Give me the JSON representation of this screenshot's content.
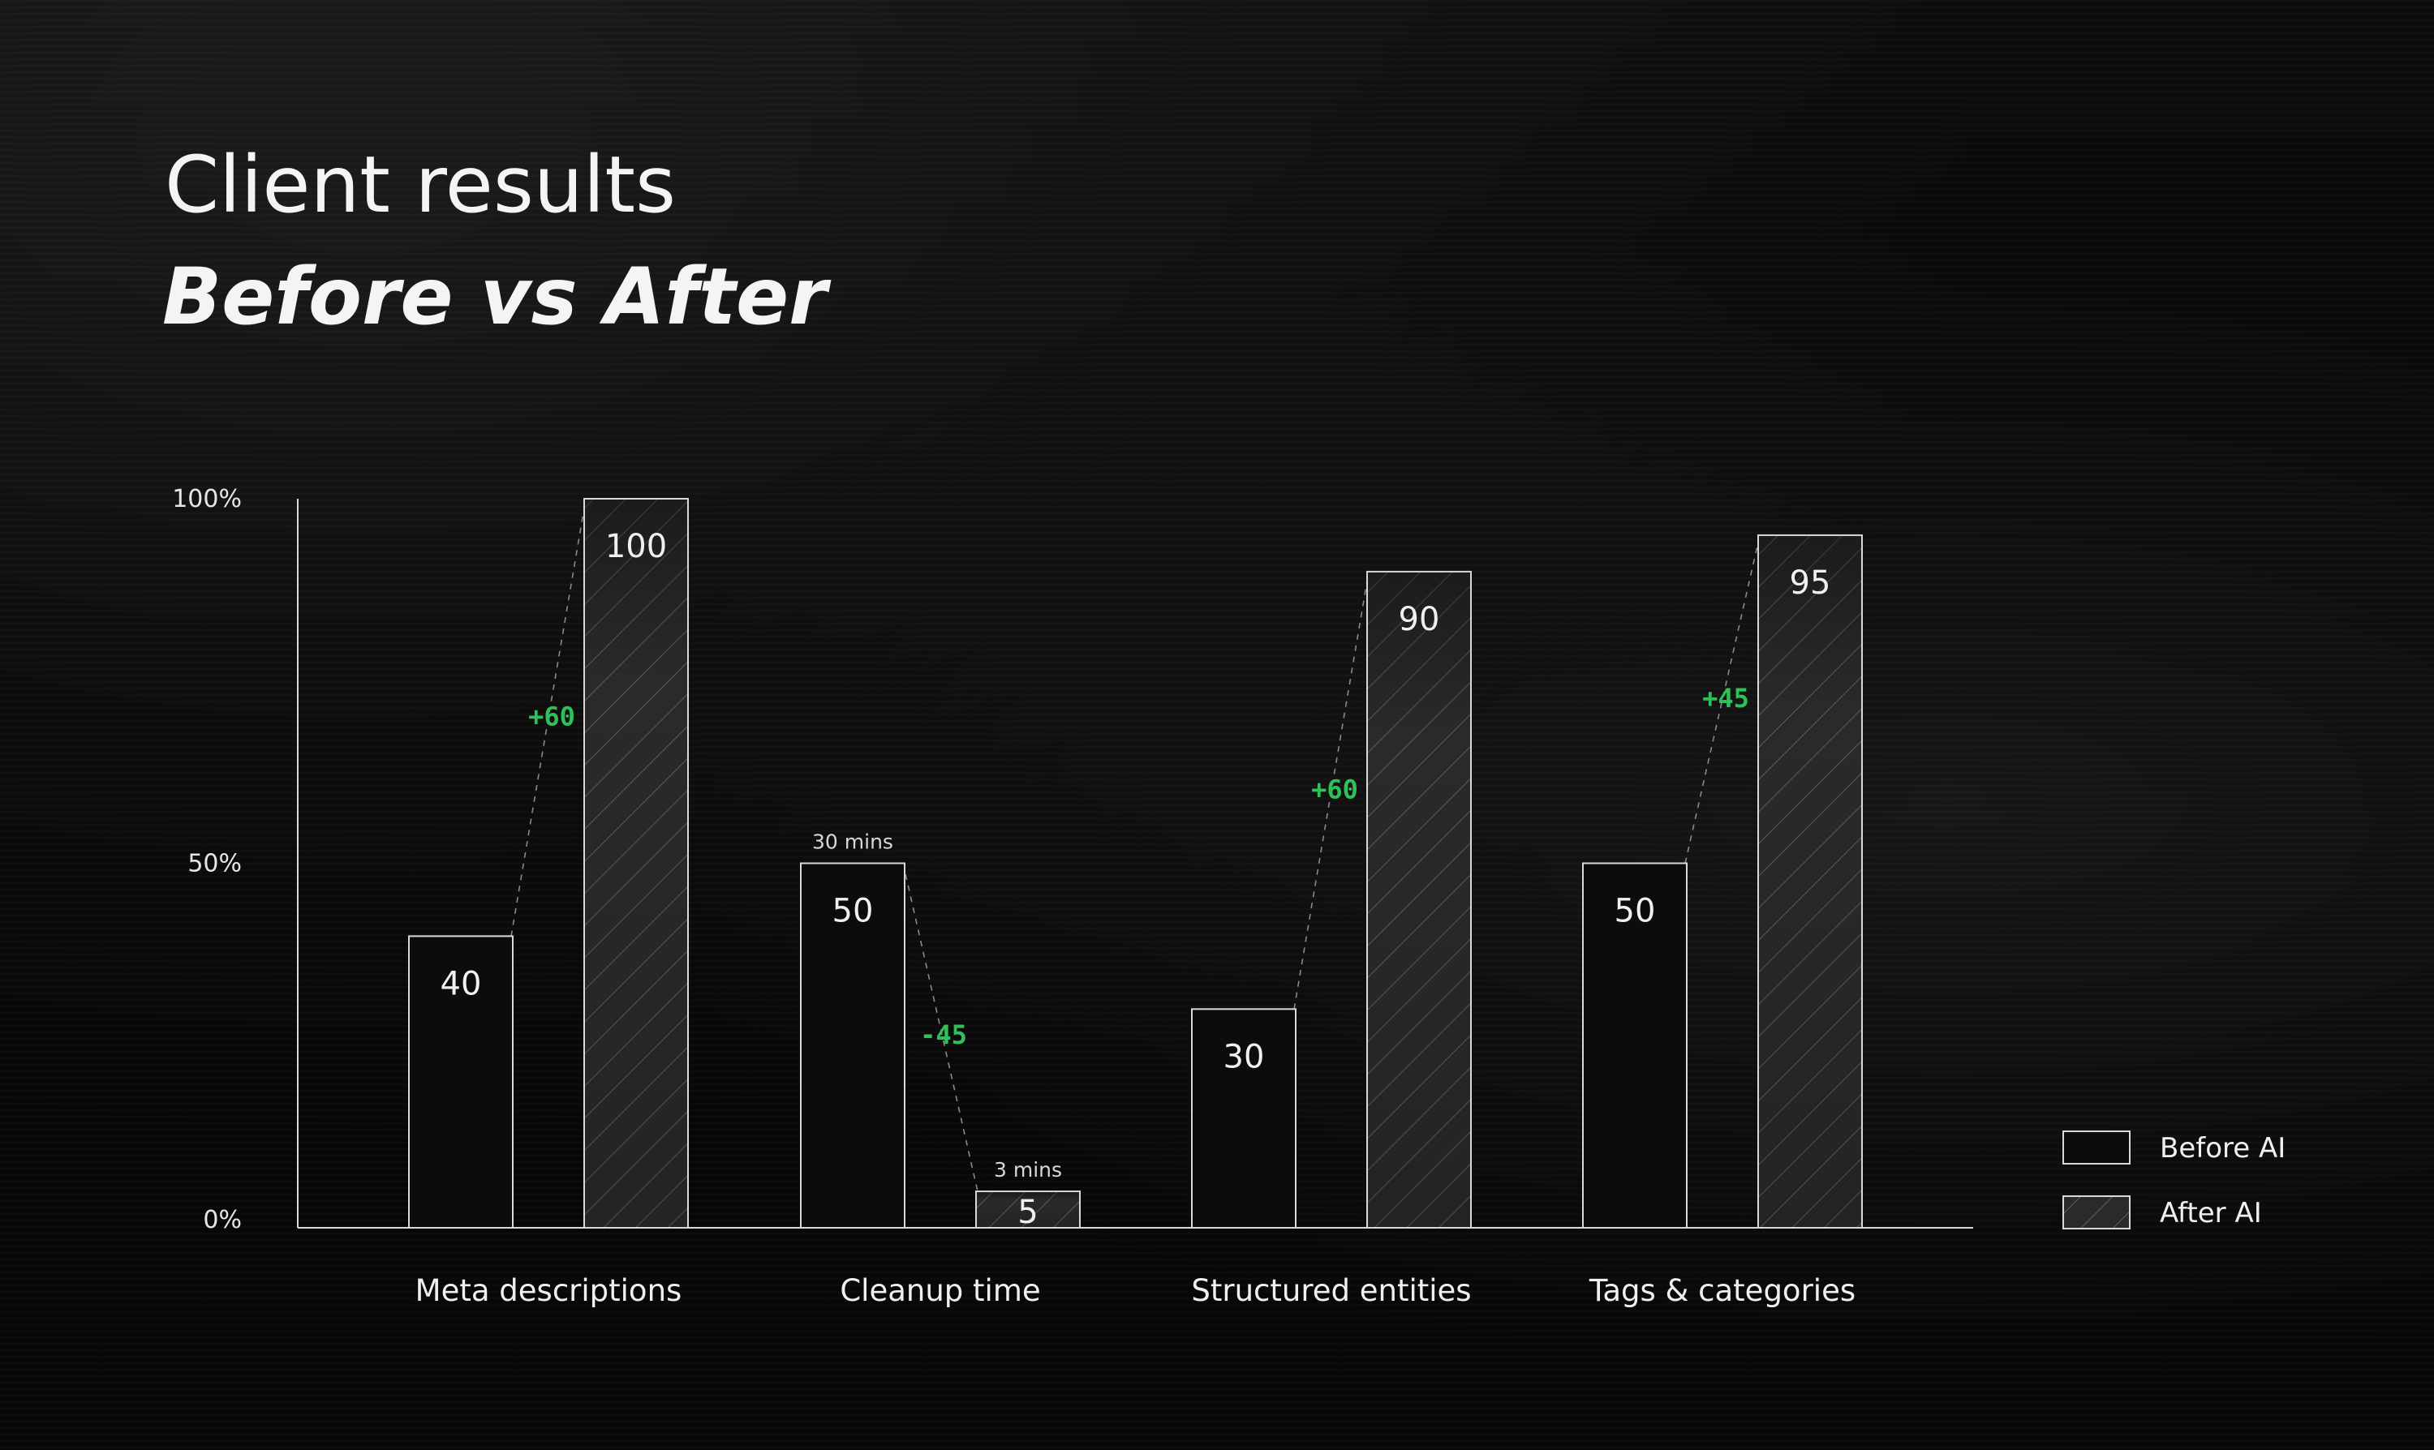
{
  "header": {
    "title": "Client results",
    "subtitle": "Before vs After"
  },
  "colors": {
    "background": "#050505",
    "bar_fill": "#0c0c0d",
    "bar_stroke": "#d9d9d9",
    "hatch": "#7a7a7a",
    "delta_positive": "#2fc05a",
    "connector": "#8a8a8a"
  },
  "chart_data": {
    "type": "bar",
    "title": "Client results",
    "subtitle": "Before vs After",
    "xlabel": "",
    "ylabel": "",
    "ylim": [
      0,
      100
    ],
    "y_ticks": [
      "0%",
      "50%",
      "100%"
    ],
    "y_tick_values": [
      0,
      50,
      100
    ],
    "grid": false,
    "legend_position": "bottom-right",
    "categories": [
      "Meta descriptions",
      "Cleanup time",
      "Structured entities",
      "Tags & categories"
    ],
    "series": [
      {
        "name": "Before AI",
        "style": "solid",
        "values": [
          40,
          50,
          30,
          50
        ]
      },
      {
        "name": "After AI",
        "style": "hatched",
        "values": [
          100,
          5,
          90,
          95
        ]
      }
    ],
    "deltas": [
      "+60",
      "-45",
      "+60",
      "+45"
    ],
    "annotations": [
      {
        "category": "Cleanup time",
        "series": "Before AI",
        "text": "30 mins"
      },
      {
        "category": "Cleanup time",
        "series": "After AI",
        "text": "3 mins"
      }
    ]
  }
}
